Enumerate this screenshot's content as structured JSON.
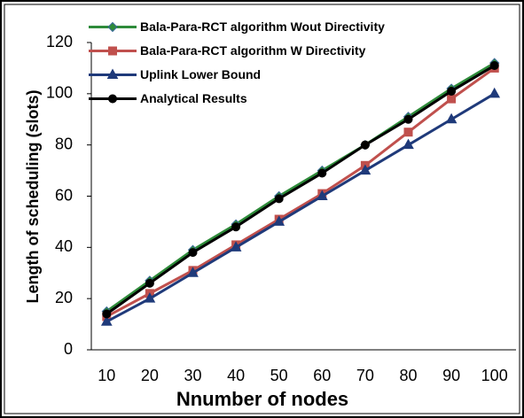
{
  "chart_data": {
    "type": "line",
    "xlabel": "Nnumber of nodes",
    "ylabel": "Length of scheduling (slots)",
    "categories": [
      "10",
      "20",
      "30",
      "40",
      "50",
      "60",
      "70",
      "80",
      "90",
      "100"
    ],
    "series": [
      {
        "name": "Bala-Para-RCT algorithm Wout Directivity",
        "color": "#2e8b3a",
        "marker": "diamond",
        "values": [
          15,
          27,
          39,
          49,
          60,
          70,
          80,
          91,
          102,
          112
        ]
      },
      {
        "name": "Bala-Para-RCT algorithm W Directivity",
        "color": "#c0504d",
        "marker": "square",
        "values": [
          13,
          22,
          31,
          41,
          51,
          61,
          72,
          85,
          98,
          110
        ]
      },
      {
        "name": "Uplink Lower Bound",
        "color": "#1f3a7a",
        "marker": "triangle",
        "values": [
          11,
          20,
          30,
          40,
          50,
          60,
          70,
          80,
          90,
          100
        ]
      },
      {
        "name": "Analytical Results",
        "color": "#000000",
        "marker": "circle",
        "values": [
          14,
          26,
          38,
          48,
          59,
          69,
          80,
          90,
          101,
          111
        ]
      }
    ],
    "ylim": [
      0,
      120
    ],
    "yticks": [
      0,
      20,
      40,
      60,
      80,
      100,
      120
    ],
    "grid": false,
    "legend": "upper left"
  }
}
